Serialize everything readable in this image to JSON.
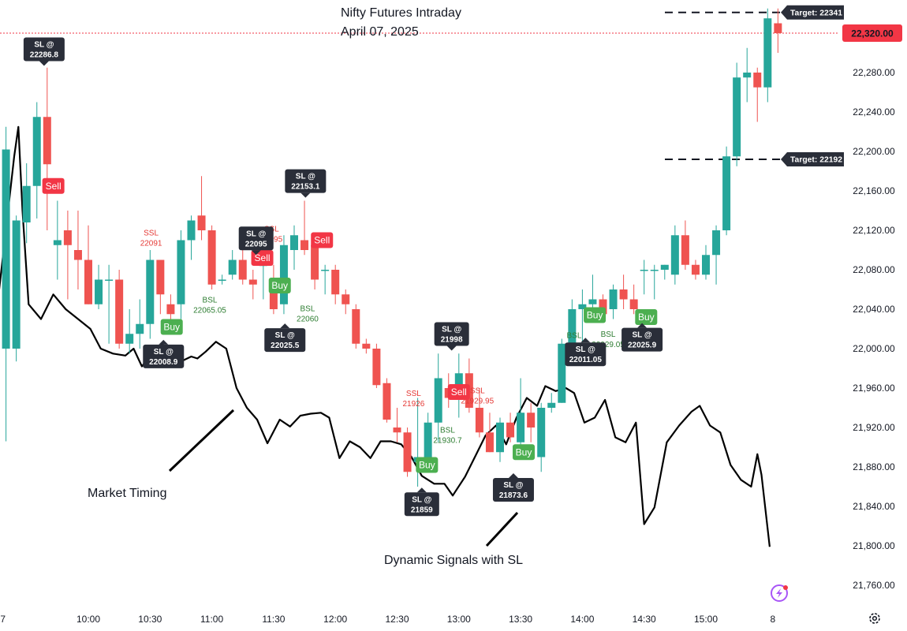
{
  "chart_data": {
    "type": "candlestick",
    "title": "Nifty Futures Intraday",
    "subtitle": "April 07, 2025",
    "ylim": [
      21740,
      22360
    ],
    "y_ticks": [
      21760,
      21800,
      21840,
      21880,
      21920,
      21960,
      22000,
      22040,
      22080,
      22120,
      22160,
      22200,
      22240,
      22280
    ],
    "y_tick_labels": [
      "21,760.00",
      "21,800.00",
      "21,840.00",
      "21,880.00",
      "21,920.00",
      "21,960.00",
      "22,000.00",
      "22,040.00",
      "22,080.00",
      "22,120.00",
      "22,160.00",
      "22,200.00",
      "22,240.00",
      "22,280.00"
    ],
    "x_tick_labels": [
      "7",
      "10:00",
      "10:30",
      "11:00",
      "11:30",
      "12:00",
      "12:30",
      "13:00",
      "13:30",
      "14:00",
      "14:30",
      "15:00",
      "8"
    ],
    "x_tick_bar_index": [
      -0.3,
      8,
      14,
      20,
      26,
      32,
      38,
      44,
      50,
      56,
      62,
      68,
      74.5
    ],
    "current_price": 22320,
    "current_price_label": "22,320.00",
    "colors": {
      "up": "#26a69a",
      "down": "#ef5350",
      "line": "#000000",
      "buy": "#4caf50",
      "sell": "#f23645",
      "tag": "#2a2e39",
      "ssl": "#e53935",
      "bsl": "#2e7d32",
      "price_line": "#f23645"
    },
    "candles": [
      {
        "o": 22000,
        "h": 22225,
        "l": 21906,
        "c": 22202
      },
      {
        "o": 22000,
        "h": 22135,
        "l": 21987,
        "c": 22130
      },
      {
        "o": 22128,
        "h": 22188,
        "l": 22107,
        "c": 22165
      },
      {
        "o": 22165,
        "h": 22250,
        "l": 22132,
        "c": 22235
      },
      {
        "o": 22235,
        "h": 22285,
        "l": 22120,
        "c": 22187
      },
      {
        "o": 22105,
        "h": 22150,
        "l": 22070,
        "c": 22110
      },
      {
        "o": 22120,
        "h": 22140,
        "l": 22050,
        "c": 22105
      },
      {
        "o": 22100,
        "h": 22140,
        "l": 22060,
        "c": 22090
      },
      {
        "o": 22090,
        "h": 22125,
        "l": 22045,
        "c": 22045
      },
      {
        "o": 22045,
        "h": 22085,
        "l": 22040,
        "c": 22070
      },
      {
        "o": 22070,
        "h": 22085,
        "l": 22005,
        "c": 22070
      },
      {
        "o": 22070,
        "h": 22080,
        "l": 22000,
        "c": 22005
      },
      {
        "o": 22005,
        "h": 22040,
        "l": 21995,
        "c": 22015
      },
      {
        "o": 22015,
        "h": 22050,
        "l": 22000,
        "c": 22025
      },
      {
        "o": 22025,
        "h": 22100,
        "l": 22010,
        "c": 22090
      },
      {
        "o": 22090,
        "h": 22090,
        "l": 22035,
        "c": 22055
      },
      {
        "o": 22045,
        "h": 22055,
        "l": 22025,
        "c": 22035
      },
      {
        "o": 22045,
        "h": 22120,
        "l": 22030,
        "c": 22110
      },
      {
        "o": 22110,
        "h": 22135,
        "l": 22090,
        "c": 22130
      },
      {
        "o": 22135,
        "h": 22175,
        "l": 22110,
        "c": 22120
      },
      {
        "o": 22120,
        "h": 22125,
        "l": 22060,
        "c": 22065
      },
      {
        "o": 22070,
        "h": 22075,
        "l": 22065,
        "c": 22070
      },
      {
        "o": 22075,
        "h": 22100,
        "l": 22070,
        "c": 22090
      },
      {
        "o": 22090,
        "h": 22100,
        "l": 22065,
        "c": 22070
      },
      {
        "o": 22070,
        "h": 22080,
        "l": 22050,
        "c": 22065
      },
      {
        "o": 22085,
        "h": 22090,
        "l": 22050,
        "c": 22085
      },
      {
        "o": 22065,
        "h": 22085,
        "l": 22035,
        "c": 22040
      },
      {
        "o": 22045,
        "h": 22115,
        "l": 22035,
        "c": 22105
      },
      {
        "o": 22100,
        "h": 22125,
        "l": 22080,
        "c": 22115
      },
      {
        "o": 22110,
        "h": 22150,
        "l": 22095,
        "c": 22100
      },
      {
        "o": 22105,
        "h": 22110,
        "l": 22060,
        "c": 22070
      },
      {
        "o": 22080,
        "h": 22085,
        "l": 22055,
        "c": 22080
      },
      {
        "o": 22080,
        "h": 22085,
        "l": 22045,
        "c": 22055
      },
      {
        "o": 22055,
        "h": 22060,
        "l": 22035,
        "c": 22045
      },
      {
        "o": 22040,
        "h": 22045,
        "l": 22000,
        "c": 22005
      },
      {
        "o": 22005,
        "h": 22010,
        "l": 21995,
        "c": 22000
      },
      {
        "o": 22000,
        "h": 22005,
        "l": 21960,
        "c": 21963
      },
      {
        "o": 21965,
        "h": 21970,
        "l": 21925,
        "c": 21928
      },
      {
        "o": 21920,
        "h": 21940,
        "l": 21905,
        "c": 21915
      },
      {
        "o": 21915,
        "h": 21920,
        "l": 21870,
        "c": 21875
      },
      {
        "o": 21885,
        "h": 21950,
        "l": 21860,
        "c": 21890
      },
      {
        "o": 21890,
        "h": 21935,
        "l": 21875,
        "c": 21925
      },
      {
        "o": 21925,
        "h": 21995,
        "l": 21905,
        "c": 21970
      },
      {
        "o": 21960,
        "h": 21975,
        "l": 21940,
        "c": 21950
      },
      {
        "o": 21950,
        "h": 21995,
        "l": 21930,
        "c": 21975
      },
      {
        "o": 21975,
        "h": 21990,
        "l": 21935,
        "c": 21940
      },
      {
        "o": 21940,
        "h": 21960,
        "l": 21910,
        "c": 21915
      },
      {
        "o": 21915,
        "h": 21935,
        "l": 21895,
        "c": 21895
      },
      {
        "o": 21895,
        "h": 21930,
        "l": 21885,
        "c": 21925
      },
      {
        "o": 21925,
        "h": 21935,
        "l": 21905,
        "c": 21910
      },
      {
        "o": 21905,
        "h": 21970,
        "l": 21895,
        "c": 21935
      },
      {
        "o": 21935,
        "h": 21945,
        "l": 21905,
        "c": 21920
      },
      {
        "o": 21890,
        "h": 21945,
        "l": 21875,
        "c": 21940
      },
      {
        "o": 21940,
        "h": 21955,
        "l": 21935,
        "c": 21945
      },
      {
        "o": 21945,
        "h": 22010,
        "l": 21945,
        "c": 22005
      },
      {
        "o": 22005,
        "h": 22050,
        "l": 22000,
        "c": 22040
      },
      {
        "o": 22040,
        "h": 22060,
        "l": 21990,
        "c": 22045
      },
      {
        "o": 22045,
        "h": 22075,
        "l": 22030,
        "c": 22050
      },
      {
        "o": 22050,
        "h": 22055,
        "l": 22030,
        "c": 22035
      },
      {
        "o": 22040,
        "h": 22065,
        "l": 22030,
        "c": 22060
      },
      {
        "o": 22060,
        "h": 22075,
        "l": 22040,
        "c": 22050
      },
      {
        "o": 22050,
        "h": 22065,
        "l": 22035,
        "c": 22040
      },
      {
        "o": 22080,
        "h": 22090,
        "l": 22055,
        "c": 22080
      },
      {
        "o": 22080,
        "h": 22085,
        "l": 22050,
        "c": 22080
      },
      {
        "o": 22080,
        "h": 22085,
        "l": 22070,
        "c": 22085
      },
      {
        "o": 22075,
        "h": 22125,
        "l": 22065,
        "c": 22115
      },
      {
        "o": 22115,
        "h": 22130,
        "l": 22080,
        "c": 22085
      },
      {
        "o": 22085,
        "h": 22090,
        "l": 22070,
        "c": 22075
      },
      {
        "o": 22075,
        "h": 22105,
        "l": 22070,
        "c": 22095
      },
      {
        "o": 22095,
        "h": 22125,
        "l": 22065,
        "c": 22120
      },
      {
        "o": 22120,
        "h": 22205,
        "l": 22115,
        "c": 22195
      },
      {
        "o": 22195,
        "h": 22290,
        "l": 22185,
        "c": 22275
      },
      {
        "o": 22275,
        "h": 22305,
        "l": 22250,
        "c": 22280
      },
      {
        "o": 22280,
        "h": 22285,
        "l": 22230,
        "c": 22265
      },
      {
        "o": 22265,
        "h": 22345,
        "l": 22250,
        "c": 22335
      },
      {
        "o": 22330,
        "h": 22345,
        "l": 22300,
        "c": 22320
      }
    ],
    "market_timing_line": [
      [
        -1.2,
        22010
      ],
      [
        0.8,
        22195
      ],
      [
        1.2,
        22225
      ],
      [
        1.6,
        22140
      ],
      [
        2.2,
        22045
      ],
      [
        3.4,
        22030
      ],
      [
        4.6,
        22055
      ],
      [
        5.8,
        22040
      ],
      [
        7,
        22030
      ],
      [
        8.2,
        22020
      ],
      [
        9.2,
        22000
      ],
      [
        10.4,
        21995
      ],
      [
        11.6,
        21993
      ],
      [
        12.4,
        22000
      ],
      [
        13.2,
        21982
      ],
      [
        14.2,
        21995
      ],
      [
        15.2,
        22005
      ],
      [
        16,
        21982
      ],
      [
        17,
        21987
      ],
      [
        18,
        21992
      ],
      [
        18.6,
        21990
      ],
      [
        19.4,
        21997
      ],
      [
        20.4,
        22007
      ],
      [
        21.4,
        22000
      ],
      [
        22.4,
        21960
      ],
      [
        23.4,
        21940
      ],
      [
        24.4,
        21928
      ],
      [
        25.4,
        21904
      ],
      [
        26.6,
        21928
      ],
      [
        27.6,
        21921
      ],
      [
        28.6,
        21932
      ],
      [
        29.6,
        21934
      ],
      [
        30.6,
        21935
      ],
      [
        31.4,
        21930
      ],
      [
        32.4,
        21889
      ],
      [
        33.4,
        21906
      ],
      [
        34.4,
        21900
      ],
      [
        35.4,
        21889
      ],
      [
        36.4,
        21906
      ],
      [
        37.4,
        21906
      ],
      [
        38.4,
        21903
      ],
      [
        39.4,
        21890
      ],
      [
        40.4,
        21871
      ],
      [
        41.6,
        21863
      ],
      [
        42.6,
        21863
      ],
      [
        43.4,
        21851
      ],
      [
        44.6,
        21870
      ],
      [
        45.6,
        21891
      ],
      [
        46.6,
        21912
      ],
      [
        47.6,
        21922
      ],
      [
        48.6,
        21903
      ],
      [
        49.6,
        21930
      ],
      [
        50.6,
        21950
      ],
      [
        51.6,
        21942
      ],
      [
        52.4,
        21962
      ],
      [
        53.4,
        21957
      ],
      [
        54.4,
        21960
      ],
      [
        55.2,
        21955
      ],
      [
        56.2,
        21925
      ],
      [
        57.2,
        21930
      ],
      [
        58.2,
        21948
      ],
      [
        59.2,
        21910
      ],
      [
        60.2,
        21905
      ],
      [
        61.2,
        21925
      ],
      [
        62,
        21822
      ],
      [
        63,
        21839
      ],
      [
        64.2,
        21905
      ],
      [
        65.4,
        21922
      ],
      [
        66.6,
        21936
      ],
      [
        67.4,
        21942
      ],
      [
        68.4,
        21922
      ],
      [
        69.4,
        21915
      ],
      [
        70.4,
        21882
      ],
      [
        71.4,
        21867
      ],
      [
        72.4,
        21860
      ],
      [
        73,
        21893
      ],
      [
        73.4,
        21872
      ],
      [
        74.2,
        21799
      ]
    ],
    "targets": [
      {
        "label": "Target: 22341",
        "value": 22341
      },
      {
        "label": "Target: 22192",
        "value": 22192
      }
    ],
    "sl_tags": [
      {
        "line1": "SL @",
        "line2": "22286.8",
        "bar": 3.7,
        "value": 22286.8,
        "pointer": "down"
      },
      {
        "line1": "SL @",
        "line2": "22008.9",
        "bar": 15.3,
        "value": 22008.9,
        "pointer": "up"
      },
      {
        "line1": "SL @",
        "line2": "22095",
        "bar": 24.3,
        "value": 22095,
        "pointer": "down"
      },
      {
        "line1": "SL @",
        "line2": "22153.1",
        "bar": 29.1,
        "value": 22153.1,
        "pointer": "down"
      },
      {
        "line1": "SL @",
        "line2": "22025.5",
        "bar": 27.1,
        "value": 22025.5,
        "pointer": "up"
      },
      {
        "line1": "SL @",
        "line2": "21998",
        "bar": 43.3,
        "value": 21998,
        "pointer": "down"
      },
      {
        "line1": "SL @",
        "line2": "21859",
        "bar": 40.4,
        "value": 21859,
        "pointer": "up"
      },
      {
        "line1": "SL @",
        "line2": "21873.6",
        "bar": 49.3,
        "value": 21873.6,
        "pointer": "up"
      },
      {
        "line1": "SL @",
        "line2": "22011.05",
        "bar": 56.3,
        "value": 22011.05,
        "pointer": "up"
      },
      {
        "line1": "SL @",
        "line2": "22025.9",
        "bar": 61.8,
        "value": 22025.9,
        "pointer": "up"
      }
    ],
    "signals": [
      {
        "text": "Sell",
        "type": "sell",
        "bar": 4.6,
        "value": 22165
      },
      {
        "text": "Buy",
        "type": "buy",
        "bar": 16.1,
        "value": 22022
      },
      {
        "text": "Sell",
        "type": "sell",
        "bar": 24.9,
        "value": 22092
      },
      {
        "text": "Buy",
        "type": "buy",
        "bar": 26.6,
        "value": 22064
      },
      {
        "text": "Sell",
        "type": "sell",
        "bar": 30.7,
        "value": 22110
      },
      {
        "text": "Sell",
        "type": "sell",
        "bar": 44,
        "value": 21956
      },
      {
        "text": "Buy",
        "type": "buy",
        "bar": 40.9,
        "value": 21882
      },
      {
        "text": "Buy",
        "type": "buy",
        "bar": 50.3,
        "value": 21895
      },
      {
        "text": "Buy",
        "type": "buy",
        "bar": 57.2,
        "value": 22034
      },
      {
        "text": "Buy",
        "type": "buy",
        "bar": 62.2,
        "value": 22032
      }
    ],
    "level_labels": [
      {
        "line1": "SSL",
        "line2": "22091",
        "type": "ssl",
        "bar": 14.1,
        "value": 22115
      },
      {
        "line1": "BSL",
        "line2": "22065.05",
        "type": "bsl",
        "bar": 19.8,
        "value": 22047
      },
      {
        "line1": "SSL",
        "line2": "22095",
        "type": "ssl",
        "bar": 25.8,
        "value": 22119
      },
      {
        "line1": "BSL",
        "line2": "22060",
        "type": "bsl",
        "bar": 29.3,
        "value": 22038
      },
      {
        "line1": "SSL",
        "line2": "21926",
        "type": "ssl",
        "bar": 39.6,
        "value": 21952
      },
      {
        "line1": "BSL",
        "line2": "21930.7",
        "type": "bsl",
        "bar": 42.9,
        "value": 21915
      },
      {
        "line1": "SSL",
        "line2": "21929.95",
        "type": "ssl",
        "bar": 45.8,
        "value": 21955
      },
      {
        "line1": "BSL",
        "line2": "22029.05",
        "type": "bsl",
        "bar": 58.5,
        "value": 22012
      },
      {
        "line1": "BSL",
        "line2": "22",
        "type": "bsl",
        "bar": 55.2,
        "value": 22011
      }
    ],
    "annotations": [
      {
        "text": "Market Timing"
      },
      {
        "text": "Dynamic Signals with SL"
      }
    ]
  }
}
